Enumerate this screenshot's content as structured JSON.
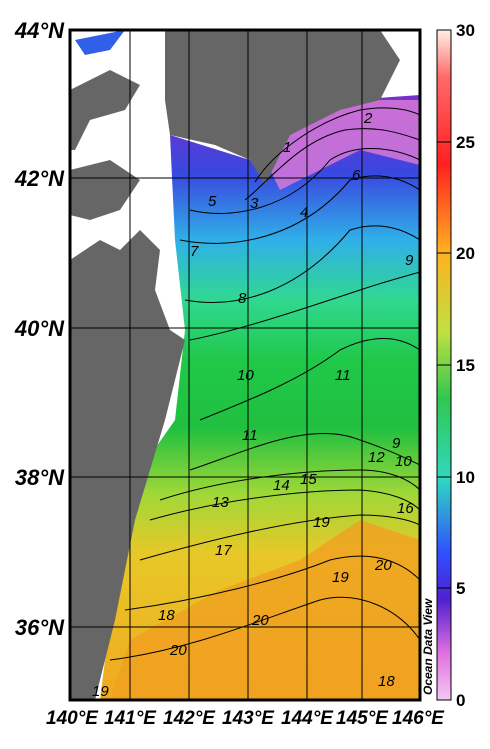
{
  "map": {
    "lat_labels": [
      "44°N",
      "42°N",
      "40°N",
      "38°N",
      "36°N"
    ],
    "lon_labels": [
      "140°E",
      "141°E",
      "142°E",
      "143°E",
      "144°E",
      "145°E",
      "146°E"
    ],
    "contour_labels": [
      "1",
      "2",
      "3",
      "4",
      "5",
      "6",
      "7",
      "8",
      "9",
      "10",
      "11",
      "11",
      "9",
      "12",
      "10",
      "13",
      "14",
      "15",
      "16",
      "17",
      "18",
      "19",
      "19",
      "20",
      "20",
      "20",
      "18",
      "19"
    ],
    "credit": "Ocean Data View",
    "colors": {
      "land": "#666666",
      "frame": "#000000"
    }
  },
  "colorbar": {
    "tick_labels": [
      "30",
      "25",
      "20",
      "15",
      "10",
      "5",
      "0"
    ],
    "range": [
      0,
      30
    ],
    "stops": [
      "#fff4d6",
      "#ff5030",
      "#e8b020",
      "#98d848",
      "#18c040",
      "#40d8c8",
      "#3468e8",
      "#6020d0",
      "#f0b0e8"
    ]
  }
}
